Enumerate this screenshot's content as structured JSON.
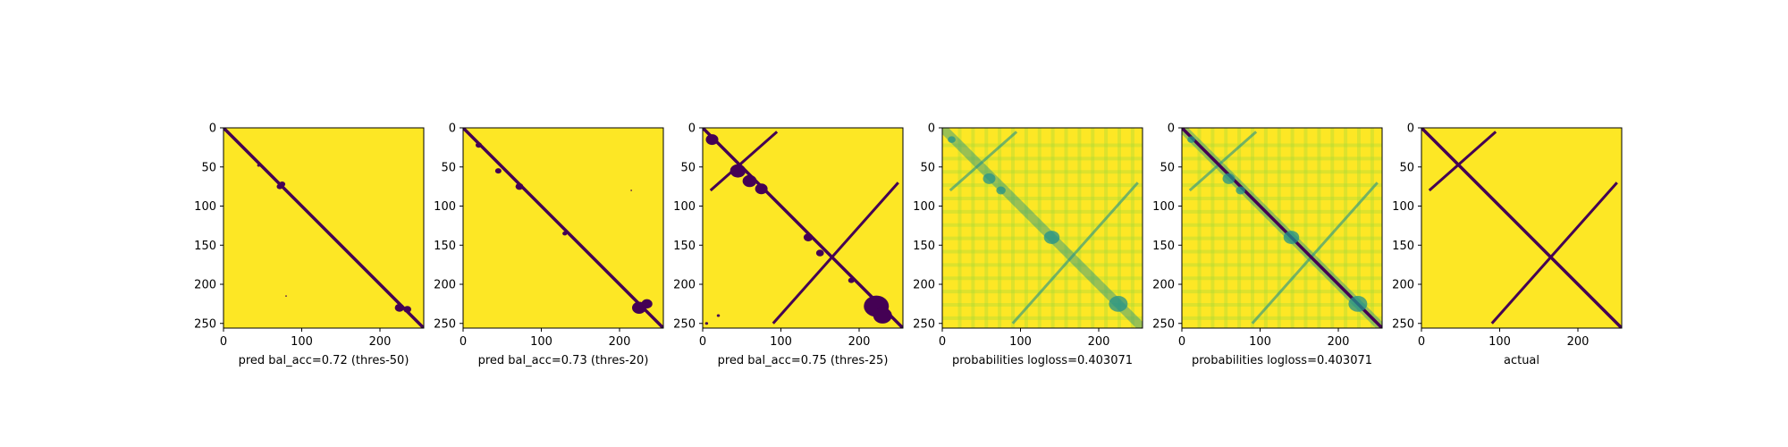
{
  "colors": {
    "low": "#440154",
    "mid": "#21918c",
    "high": "#fde725",
    "axis": "#000000"
  },
  "chart_data": [
    {
      "type": "heatmap",
      "title": "",
      "xlabel": "pred bal_acc=0.72 (thres-50)",
      "ylabel": "",
      "xlim": [
        0,
        256
      ],
      "ylim": [
        256,
        0
      ],
      "xticks": [
        0,
        100,
        200
      ],
      "yticks": [
        0,
        50,
        100,
        150,
        200,
        250
      ],
      "colormap": "viridis",
      "binary": true,
      "main_diagonal": true,
      "blobs": [
        [
          45,
          48,
          2
        ],
        [
          72,
          75,
          4
        ],
        [
          75,
          72,
          4
        ],
        [
          225,
          230,
          6
        ],
        [
          235,
          232,
          5
        ],
        [
          80,
          215,
          1
        ]
      ],
      "anti_diagonal": false
    },
    {
      "type": "heatmap",
      "title": "",
      "xlabel": "pred bal_acc=0.73 (thres-20)",
      "ylabel": "",
      "xlim": [
        0,
        256
      ],
      "ylim": [
        256,
        0
      ],
      "xticks": [
        0,
        100,
        200
      ],
      "yticks": [
        0,
        50,
        100,
        150,
        200,
        250
      ],
      "colormap": "viridis",
      "binary": true,
      "main_diagonal": true,
      "blobs": [
        [
          20,
          22,
          4
        ],
        [
          45,
          55,
          4
        ],
        [
          72,
          75,
          5
        ],
        [
          130,
          135,
          3
        ],
        [
          225,
          230,
          9
        ],
        [
          235,
          225,
          7
        ],
        [
          215,
          80,
          1
        ]
      ],
      "anti_diagonal": false
    },
    {
      "type": "heatmap",
      "title": "",
      "xlabel": "pred bal_acc=0.75 (thres-25)",
      "ylabel": "",
      "xlim": [
        0,
        256
      ],
      "ylim": [
        256,
        0
      ],
      "xticks": [
        0,
        100,
        200
      ],
      "yticks": [
        0,
        50,
        100,
        150,
        200,
        250
      ],
      "colormap": "viridis",
      "binary": true,
      "main_diagonal": true,
      "blobs": [
        [
          12,
          15,
          8
        ],
        [
          45,
          55,
          10
        ],
        [
          60,
          68,
          9
        ],
        [
          75,
          78,
          8
        ],
        [
          135,
          140,
          6
        ],
        [
          150,
          160,
          5
        ],
        [
          190,
          195,
          4
        ],
        [
          222,
          228,
          16
        ],
        [
          230,
          240,
          12
        ],
        [
          20,
          240,
          2
        ],
        [
          5,
          250,
          2
        ]
      ],
      "anti_diagonal": true
    },
    {
      "type": "heatmap",
      "title": "",
      "xlabel": "probabilities logloss=0.403071",
      "ylabel": "",
      "xlim": [
        0,
        256
      ],
      "ylim": [
        256,
        0
      ],
      "xticks": [
        0,
        100,
        200
      ],
      "yticks": [
        0,
        50,
        100,
        150,
        200,
        250
      ],
      "colormap": "viridis",
      "binary": false,
      "main_diagonal": false,
      "blobs": [
        [
          12,
          15,
          5
        ],
        [
          60,
          65,
          8
        ],
        [
          75,
          80,
          6
        ],
        [
          225,
          225,
          12
        ],
        [
          140,
          140,
          10
        ]
      ],
      "anti_diagonal": true
    },
    {
      "type": "heatmap",
      "title": "",
      "xlabel": "probabilities logloss=0.403071",
      "ylabel": "",
      "xlim": [
        0,
        256
      ],
      "ylim": [
        256,
        0
      ],
      "xticks": [
        0,
        100,
        200
      ],
      "yticks": [
        0,
        50,
        100,
        150,
        200,
        250
      ],
      "colormap": "viridis",
      "binary": false,
      "main_diagonal": true,
      "blobs": [
        [
          12,
          15,
          5
        ],
        [
          60,
          65,
          8
        ],
        [
          75,
          80,
          6
        ],
        [
          225,
          225,
          12
        ],
        [
          140,
          140,
          10
        ]
      ],
      "anti_diagonal": true
    },
    {
      "type": "heatmap",
      "title": "",
      "xlabel": "actual",
      "ylabel": "",
      "xlim": [
        0,
        256
      ],
      "ylim": [
        256,
        0
      ],
      "xticks": [
        0,
        100,
        200
      ],
      "yticks": [
        0,
        50,
        100,
        150,
        200,
        250
      ],
      "colormap": "viridis",
      "binary": true,
      "main_diagonal": true,
      "blobs": [],
      "anti_diagonal": true
    }
  ]
}
